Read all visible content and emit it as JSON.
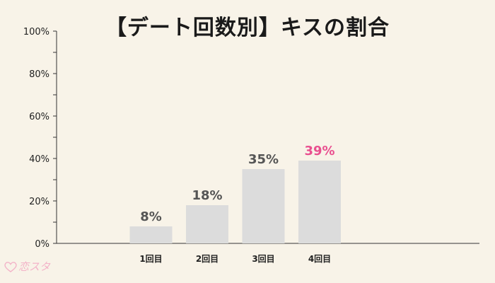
{
  "chart_data": {
    "type": "bar",
    "title": "【デート回数別】キスの割合",
    "categories": [
      "1回目",
      "2回目",
      "3回目",
      "4回目"
    ],
    "values": [
      8,
      18,
      35,
      39
    ],
    "data_labels": [
      "8%",
      "18%",
      "35%",
      "39%"
    ],
    "ylim": [
      0,
      100
    ],
    "yticks": [
      "0%",
      "20%",
      "40%",
      "60%",
      "80%",
      "100%"
    ],
    "ytick_values": [
      0,
      20,
      40,
      60,
      80,
      100
    ],
    "bar_color": "#dcdcdc",
    "label_color": "#555555",
    "highlight_index": 3,
    "highlight_color": "#e94f8f",
    "grid": false
  },
  "logo": {
    "text": "恋スタ",
    "icon": "heart-icon",
    "color": "#f3b3c8"
  }
}
